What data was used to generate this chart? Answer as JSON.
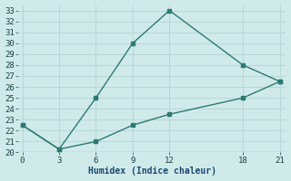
{
  "line1_x": [
    0,
    3,
    6,
    9,
    12,
    18,
    21
  ],
  "line1_y": [
    22.5,
    20.3,
    25.0,
    30.0,
    33.0,
    28.0,
    26.5
  ],
  "line2_x": [
    0,
    3,
    6,
    9,
    12,
    18,
    21
  ],
  "line2_y": [
    22.5,
    20.3,
    21.0,
    22.5,
    23.5,
    25.0,
    26.5
  ],
  "line_color": "#2d7a72",
  "bg_color": "#d0eaea",
  "grid_color": "#b8d8d8",
  "xlabel": "Humidex (Indice chaleur)",
  "ylim": [
    20,
    33.5
  ],
  "xlim": [
    -0.3,
    21.5
  ],
  "xticks": [
    0,
    3,
    6,
    9,
    12,
    18,
    21
  ],
  "yticks": [
    20,
    21,
    22,
    23,
    24,
    25,
    26,
    27,
    28,
    29,
    30,
    31,
    32,
    33
  ]
}
